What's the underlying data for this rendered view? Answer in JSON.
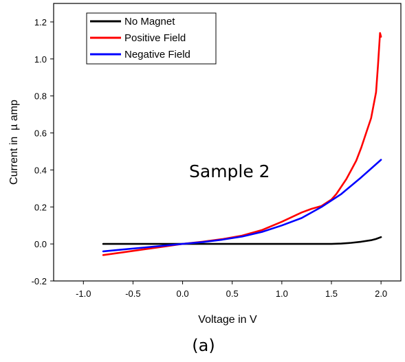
{
  "chart_data": {
    "type": "line",
    "xlabel": "Voltage in V",
    "ylabel": "Current in  µ amp",
    "xlim": [
      -1.3,
      2.2
    ],
    "ylim": [
      -0.2,
      1.3
    ],
    "xticks": [
      -1.0,
      -0.5,
      0.0,
      0.5,
      1.0,
      1.5,
      2.0
    ],
    "xtick_labels": [
      "-1.0",
      "-0.5",
      "0.0",
      "0.5",
      "1.0",
      "1.5",
      "2.0"
    ],
    "yticks": [
      -0.2,
      0.0,
      0.2,
      0.4,
      0.6,
      0.8,
      1.0,
      1.2
    ],
    "ytick_labels": [
      "-0.2",
      "0.0",
      "0.2",
      "0.4",
      "0.6",
      "0.8",
      "1.0",
      "1.2"
    ],
    "grid": false,
    "legend_position": "top-left",
    "annotation": "Sample 2",
    "caption": "(a)",
    "series": [
      {
        "name": "No Magnet",
        "color": "#000000",
        "x": [
          -0.8,
          -0.5,
          0.0,
          0.5,
          1.0,
          1.5,
          1.6,
          1.7,
          1.8,
          1.9,
          1.95,
          2.0
        ],
        "y": [
          0.0,
          0.0,
          0.0,
          0.0,
          0.0,
          0.0,
          0.002,
          0.006,
          0.012,
          0.02,
          0.027,
          0.037
        ]
      },
      {
        "name": "Positive Field",
        "color": "#ff0000",
        "x": [
          -0.8,
          -0.6,
          -0.4,
          -0.2,
          0.0,
          0.2,
          0.4,
          0.6,
          0.8,
          1.0,
          1.1,
          1.2,
          1.3,
          1.4,
          1.5,
          1.55,
          1.6,
          1.65,
          1.7,
          1.75,
          1.8,
          1.85,
          1.9,
          1.95,
          1.97,
          1.99,
          2.0
        ],
        "y": [
          -0.06,
          -0.045,
          -0.03,
          -0.015,
          0.0,
          0.012,
          0.026,
          0.045,
          0.075,
          0.12,
          0.145,
          0.17,
          0.19,
          0.205,
          0.24,
          0.27,
          0.31,
          0.35,
          0.4,
          0.45,
          0.52,
          0.6,
          0.68,
          0.82,
          0.97,
          1.14,
          1.12
        ]
      },
      {
        "name": "Negative Field",
        "color": "#0000ff",
        "x": [
          -0.8,
          -0.6,
          -0.4,
          -0.2,
          0.0,
          0.2,
          0.4,
          0.6,
          0.8,
          1.0,
          1.2,
          1.4,
          1.6,
          1.8,
          2.0
        ],
        "y": [
          -0.04,
          -0.03,
          -0.02,
          -0.01,
          0.0,
          0.01,
          0.023,
          0.04,
          0.065,
          0.1,
          0.14,
          0.2,
          0.27,
          0.36,
          0.455
        ]
      }
    ]
  }
}
